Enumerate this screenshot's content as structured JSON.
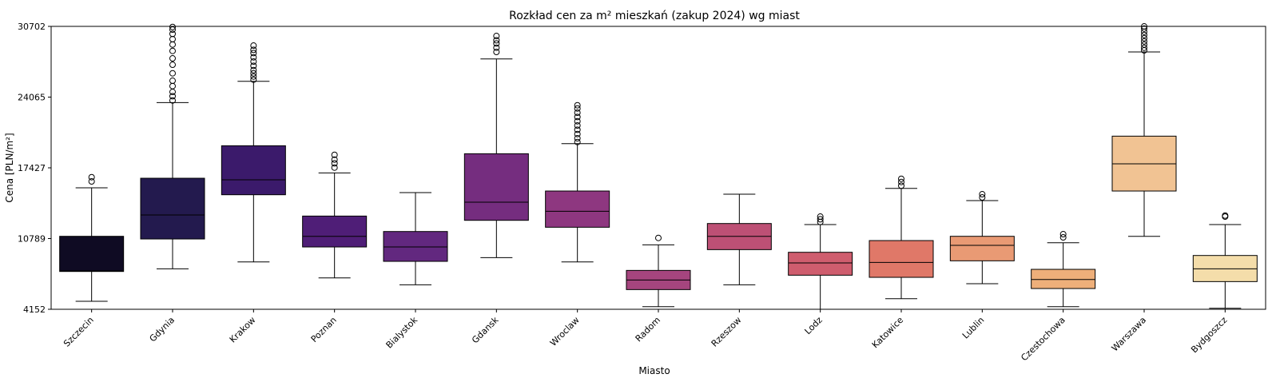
{
  "chart_data": {
    "type": "box",
    "title": "Rozkład cen za m² mieszkań (zakup 2024) wg miast",
    "xlabel": "Miasto",
    "ylabel": "Cena [PLN/m²]",
    "ylim": [
      4152,
      30702
    ],
    "yticks": [
      4152,
      10789,
      17427,
      24065,
      30702
    ],
    "yticks_labels": [
      "4152",
      "10789",
      "17427",
      "24065",
      "30702"
    ],
    "grid": false,
    "legend": "none",
    "categories": [
      "Szczecin",
      "Gdynia",
      "Krakow",
      "Poznan",
      "Bialystok",
      "Gdansk",
      "Wroclaw",
      "Radom",
      "Rzeszow",
      "Lodz",
      "Katowice",
      "Lublin",
      "Czestochowa",
      "Warszawa",
      "Bydgoszcz"
    ],
    "boxes": [
      {
        "category": "Szczecin",
        "color": "#0f0b23",
        "whisker_low": 4900,
        "q1": 7700,
        "median": 7750,
        "q3": 11000,
        "whisker_high": 15550,
        "outliers": [
          16150,
          16550
        ]
      },
      {
        "category": "Gdynia",
        "color": "#231a4e",
        "whisker_low": 7950,
        "q1": 10750,
        "median": 13000,
        "q3": 16450,
        "whisker_high": 23550,
        "outliers": [
          23750,
          24150,
          24550,
          25100,
          25600,
          26300,
          27100,
          27700,
          28400,
          29000,
          29500,
          30000,
          30400,
          30650
        ]
      },
      {
        "category": "Krakow",
        "color": "#3b1a6b",
        "whisker_low": 8600,
        "q1": 14900,
        "median": 16300,
        "q3": 19500,
        "whisker_high": 25550,
        "outliers": [
          25700,
          26000,
          26300,
          26600,
          27000,
          27400,
          27800,
          28200,
          28500,
          28900
        ]
      },
      {
        "category": "Poznan",
        "color": "#4f1e77",
        "whisker_low": 7100,
        "q1": 10000,
        "median": 11000,
        "q3": 12900,
        "whisker_high": 16950,
        "outliers": [
          17450,
          17850,
          18200,
          18650
        ]
      },
      {
        "category": "Bialystok",
        "color": "#62287f",
        "whisker_low": 6450,
        "q1": 8650,
        "median": 10000,
        "q3": 11450,
        "whisker_high": 15100,
        "outliers": []
      },
      {
        "category": "Gdansk",
        "color": "#752d7f",
        "whisker_low": 9000,
        "q1": 12500,
        "median": 14200,
        "q3": 18750,
        "whisker_high": 27650,
        "outliers": [
          28300,
          28700,
          29100,
          29400,
          29800
        ]
      },
      {
        "category": "Wroclaw",
        "color": "#8e3780",
        "whisker_low": 8600,
        "q1": 11850,
        "median": 13350,
        "q3": 15250,
        "whisker_high": 19700,
        "outliers": [
          19850,
          20200,
          20600,
          21000,
          21400,
          21800,
          22200,
          22600,
          23000,
          23300
        ]
      },
      {
        "category": "Radom",
        "color": "#a5457e",
        "whisker_low": 4400,
        "q1": 6000,
        "median": 6900,
        "q3": 7800,
        "whisker_high": 10200,
        "outliers": [
          10850
        ]
      },
      {
        "category": "Rzeszow",
        "color": "#bd5075",
        "whisker_low": 6450,
        "q1": 9750,
        "median": 11000,
        "q3": 12200,
        "whisker_high": 14950,
        "outliers": []
      },
      {
        "category": "Lodz",
        "color": "#cf5d6e",
        "whisker_low": 4150,
        "q1": 7350,
        "median": 8500,
        "q3": 9500,
        "whisker_high": 12100,
        "outliers": [
          12350,
          12600,
          12850
        ]
      },
      {
        "category": "Katowice",
        "color": "#e07868",
        "whisker_low": 5150,
        "q1": 7150,
        "median": 8550,
        "q3": 10600,
        "whisker_high": 15500,
        "outliers": [
          15750,
          16100,
          16400
        ]
      },
      {
        "category": "Lublin",
        "color": "#e99a74",
        "whisker_low": 6550,
        "q1": 8700,
        "median": 10150,
        "q3": 11000,
        "whisker_high": 14350,
        "outliers": [
          14650,
          14950
        ]
      },
      {
        "category": "Czestochowa",
        "color": "#eeaf7a",
        "whisker_low": 4400,
        "q1": 6100,
        "median": 6950,
        "q3": 7900,
        "whisker_high": 10400,
        "outliers": [
          10900,
          11200
        ]
      },
      {
        "category": "Warszawa",
        "color": "#f1c393",
        "whisker_low": 11000,
        "q1": 15250,
        "median": 17800,
        "q3": 20400,
        "whisker_high": 28300,
        "outliers": [
          28450,
          28700,
          29000,
          29300,
          29600,
          29900,
          30200,
          30500,
          30700
        ]
      },
      {
        "category": "Bydgoszcz",
        "color": "#f4ddaa",
        "whisker_low": 4250,
        "q1": 6750,
        "median": 7950,
        "q3": 9200,
        "whisker_high": 12100,
        "outliers": [
          12850,
          12950
        ]
      }
    ]
  }
}
